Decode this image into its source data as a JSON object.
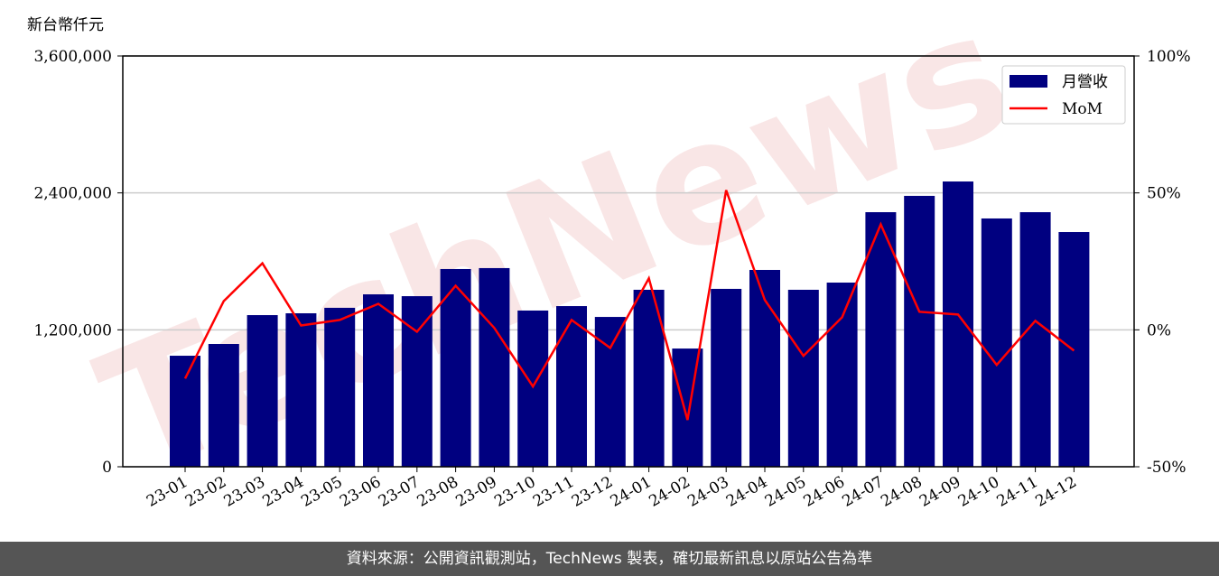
{
  "chart_data": {
    "type": "bar-line",
    "watermark": "TechNews",
    "y_label": "新台幣仟元",
    "categories": [
      "23-01",
      "23-02",
      "23-03",
      "23-04",
      "23-05",
      "23-06",
      "23-07",
      "23-08",
      "23-09",
      "23-10",
      "23-11",
      "23-12",
      "24-01",
      "24-02",
      "24-03",
      "24-04",
      "24-05",
      "24-06",
      "24-07",
      "24-08",
      "24-09",
      "24-10",
      "24-11",
      "24-12"
    ],
    "series": [
      {
        "name": "月營收",
        "type": "bar",
        "color": "#000080",
        "values": [
          973000,
          1076000,
          1329000,
          1345000,
          1393000,
          1511000,
          1495000,
          1733000,
          1741000,
          1369000,
          1408000,
          1313000,
          1551000,
          1036000,
          1559000,
          1725000,
          1551000,
          1614000,
          2231000,
          2374000,
          2500000,
          2176000,
          2231000,
          2057000
        ]
      },
      {
        "name": "MoM",
        "type": "line",
        "axis": "y2",
        "color": "#ff0000",
        "values": [
          -17.8,
          10.5,
          24.3,
          1.6,
          3.6,
          9.5,
          -0.7,
          16.1,
          0.7,
          -20.7,
          3.6,
          -6.6,
          18.8,
          -32.9,
          51,
          10.9,
          -9.5,
          4.6,
          38.5,
          6.6,
          5.6,
          -12.8,
          3.3,
          -7.6
        ]
      }
    ],
    "ylim": [
      0,
      3600000
    ],
    "yticks": [
      0,
      {
        "value": 1200000,
        "label": "1,200,000"
      },
      {
        "value": 2400000,
        "label": "2,400,000"
      },
      {
        "value": 3600000,
        "label": "3,600,000"
      }
    ],
    "y2lim": [
      -50,
      100
    ],
    "y2ticks": [
      {
        "value": -50,
        "label": "-50%"
      },
      {
        "value": 0,
        "label": "0%"
      },
      {
        "value": 50,
        "label": "50%"
      },
      {
        "value": 100,
        "label": "100%"
      }
    ],
    "grid": true,
    "legend": "upper right"
  },
  "footer": "資料來源：公開資訊觀測站，TechNews 製表，確切最新訊息以原站公告為準"
}
